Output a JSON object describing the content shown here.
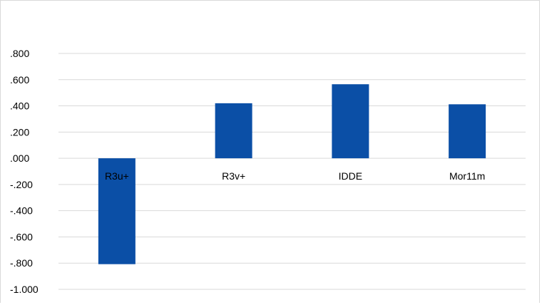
{
  "chart_data": {
    "type": "bar",
    "title": "",
    "xlabel": "",
    "ylabel": "",
    "categories": [
      "R3u+",
      "R3v+",
      "IDDE",
      "Mor11m"
    ],
    "values": [
      -0.808,
      0.42,
      0.565,
      0.412
    ],
    "ylim": [
      -1.0,
      0.8
    ],
    "yticks": [
      0.8,
      0.6,
      0.4,
      0.2,
      0.0,
      -0.2,
      -0.4,
      -0.6,
      -0.8,
      -1.0
    ],
    "ytick_labels": [
      ".800",
      ".600",
      ".400",
      ".200",
      ".000",
      "-.200",
      "-.400",
      "-.600",
      "-.800",
      "-1.000"
    ],
    "grid": true,
    "legend": "none",
    "bar_color": "#0b4fa6",
    "grid_color": "#d9d9d9"
  }
}
